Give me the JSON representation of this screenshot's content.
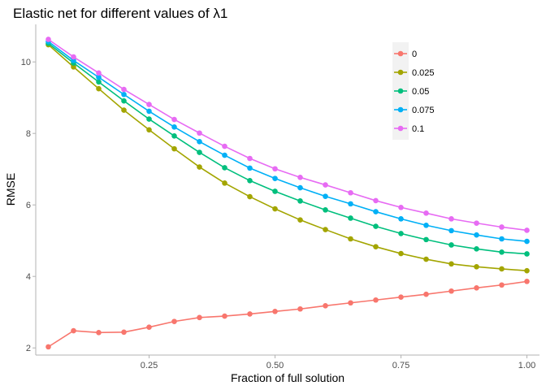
{
  "chart_data": {
    "type": "line",
    "title": "Elastic net for different values of λ1",
    "xlabel": "Fraction of full solution",
    "ylabel": "RMSE",
    "xlim": [
      0.025,
      1.025
    ],
    "ylim": [
      1.8,
      11.05
    ],
    "x_ticks": [
      0.25,
      0.5,
      0.75,
      1.0
    ],
    "x_tick_labels": [
      "0.25",
      "0.50",
      "0.75",
      "1.00"
    ],
    "y_ticks": [
      2,
      4,
      6,
      8,
      10
    ],
    "y_tick_labels": [
      "2",
      "4",
      "6",
      "8",
      "10"
    ],
    "grid": false,
    "legend_position": "top-right",
    "x": [
      0.05,
      0.1,
      0.15,
      0.2,
      0.25,
      0.3,
      0.35,
      0.4,
      0.45,
      0.5,
      0.55,
      0.6,
      0.65,
      0.7,
      0.75,
      0.8,
      0.85,
      0.9,
      0.95,
      1.0
    ],
    "series": [
      {
        "name": "0",
        "color": "#F8766D",
        "values": [
          2.03,
          2.48,
          2.43,
          2.44,
          2.58,
          2.74,
          2.85,
          2.89,
          2.95,
          3.02,
          3.09,
          3.18,
          3.26,
          3.34,
          3.42,
          3.5,
          3.59,
          3.68,
          3.76,
          3.86
        ]
      },
      {
        "name": "0.025",
        "color": "#A3A500",
        "values": [
          10.48,
          9.86,
          9.25,
          8.65,
          8.1,
          7.57,
          7.06,
          6.61,
          6.23,
          5.89,
          5.58,
          5.31,
          5.05,
          4.83,
          4.64,
          4.48,
          4.35,
          4.27,
          4.21,
          4.16
        ]
      },
      {
        "name": "0.05",
        "color": "#00BF7D",
        "values": [
          10.52,
          9.97,
          9.44,
          8.91,
          8.4,
          7.93,
          7.47,
          7.04,
          6.68,
          6.38,
          6.11,
          5.86,
          5.63,
          5.4,
          5.2,
          5.03,
          4.88,
          4.77,
          4.68,
          4.63
        ]
      },
      {
        "name": "0.075",
        "color": "#00B0F6",
        "values": [
          10.57,
          10.04,
          9.57,
          9.09,
          8.62,
          8.18,
          7.77,
          7.39,
          7.03,
          6.74,
          6.48,
          6.24,
          6.03,
          5.81,
          5.61,
          5.43,
          5.28,
          5.16,
          5.05,
          4.98
        ]
      },
      {
        "name": "0.1",
        "color": "#E76BF3",
        "values": [
          10.63,
          10.14,
          9.69,
          9.23,
          8.81,
          8.39,
          8.01,
          7.64,
          7.3,
          7.01,
          6.77,
          6.56,
          6.34,
          6.12,
          5.93,
          5.77,
          5.61,
          5.49,
          5.38,
          5.29
        ]
      }
    ]
  }
}
